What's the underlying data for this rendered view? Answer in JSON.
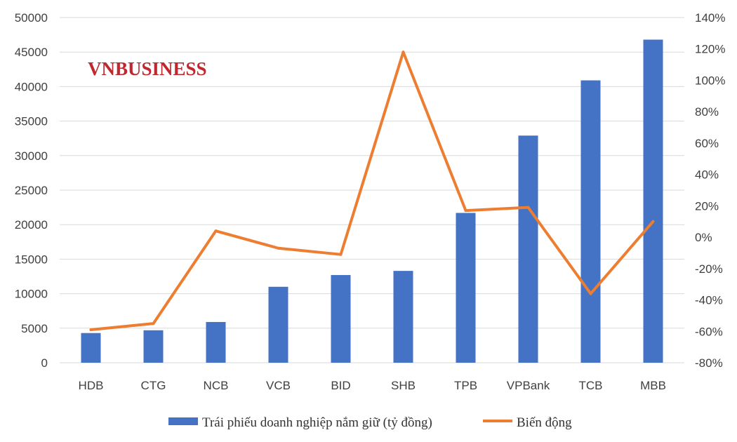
{
  "watermark": "VNBUSINESS",
  "colors": {
    "bar": "#4472c4",
    "line": "#ed7d31",
    "grid": "#d9d9d9"
  },
  "chart_data": {
    "type": "bar",
    "categories": [
      "HDB",
      "CTG",
      "NCB",
      "VCB",
      "BID",
      "SHB",
      "TPB",
      "VPBank",
      "TCB",
      "MBB"
    ],
    "series": [
      {
        "name": "Trái phiếu doanh nghiệp nắm giữ (tỷ đồng)",
        "type": "bar",
        "axis": "left",
        "values": [
          4300,
          4700,
          5900,
          11000,
          12700,
          13300,
          21700,
          32900,
          40900,
          46800
        ]
      },
      {
        "name": "Biến động",
        "type": "line",
        "axis": "right",
        "values": [
          -59,
          -55,
          4,
          -7,
          -11,
          118,
          17,
          19,
          -36,
          10
        ]
      }
    ],
    "y_left": {
      "min": 0,
      "max": 50000,
      "ticks": [
        "0",
        "5000",
        "10000",
        "15000",
        "20000",
        "25000",
        "30000",
        "35000",
        "40000",
        "45000",
        "50000"
      ]
    },
    "y_right": {
      "min": -80,
      "max": 140,
      "unit": "%",
      "ticks": [
        "-80%",
        "-60%",
        "-40%",
        "-20%",
        "0%",
        "20%",
        "40%",
        "60%",
        "80%",
        "100%",
        "120%",
        "140%"
      ]
    },
    "grid": true,
    "legend_position": "bottom"
  }
}
